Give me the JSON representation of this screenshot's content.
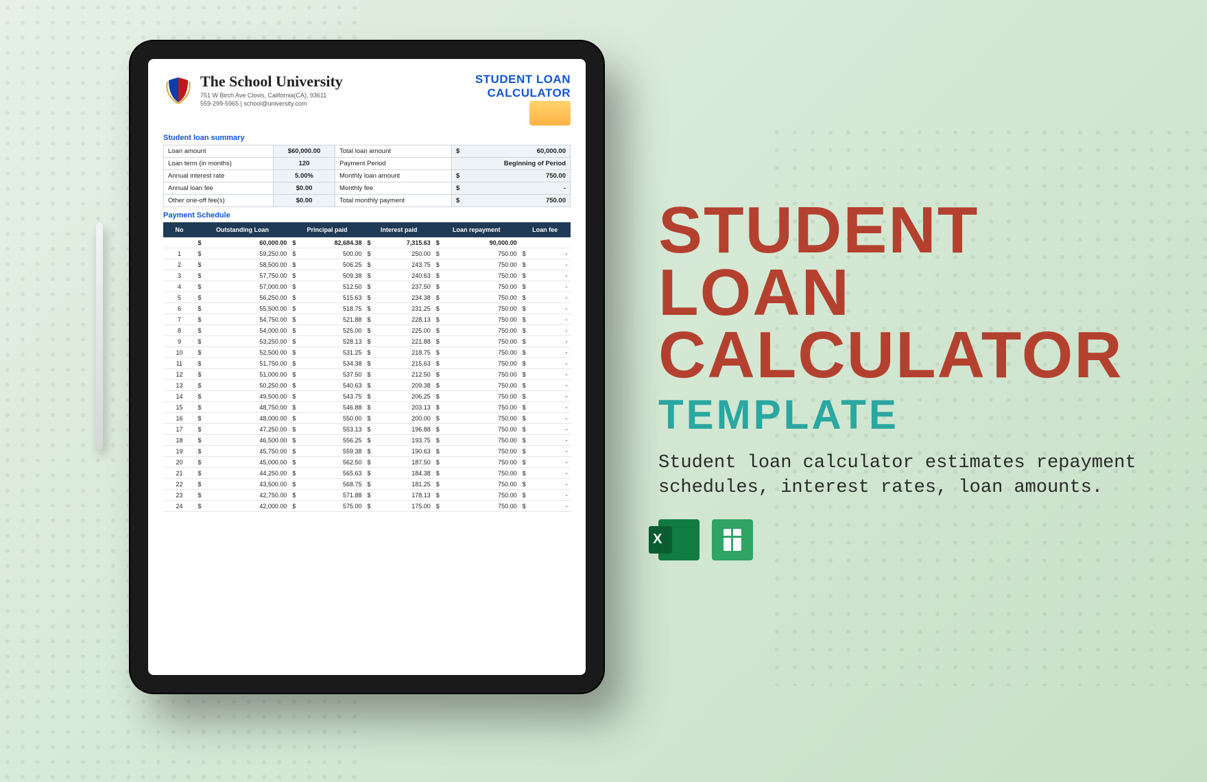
{
  "background": {
    "gradient_from": "#e6f0e6",
    "gradient_to": "#c8e0c8",
    "dot_color_left": "rgba(0,0,0,0.06)",
    "dot_color_right": "rgba(80,100,80,0.10)"
  },
  "marketing": {
    "title_line1": "STUDENT LOAN",
    "title_line2": "CALCULATOR",
    "title_color": "#b4412f",
    "subtitle": "TEMPLATE",
    "subtitle_color": "#2aa7a1",
    "description": "Student loan calculator estimates repayment schedules, interest rates, loan amounts.",
    "formats": [
      "Excel",
      "Google Sheets"
    ]
  },
  "document": {
    "school_name": "The School University",
    "address_line": "751 W Birch Ave Clovis, California(CA), 93611",
    "contact_line": "559-299-5965 | school@university.com",
    "header_title_line1": "STUDENT LOAN",
    "header_title_line2": "CALCULATOR",
    "header_title_color": "#1155d4",
    "crest_colors": {
      "shield_left": "#0b3ea8",
      "shield_right": "#c01919",
      "laurel": "#d4a93a"
    },
    "summary_label": "Student loan summary",
    "summary": {
      "left": [
        {
          "label": "Loan amount",
          "value": "$60,000.00"
        },
        {
          "label": "Loan term (in months)",
          "value": "120"
        },
        {
          "label": "Annual interest rate",
          "value": "5.00%"
        },
        {
          "label": "Annual loan fee",
          "value": "$0.00"
        },
        {
          "label": "Other one-off fee(s)",
          "value": "$0.00"
        }
      ],
      "right": [
        {
          "label": "Total loan amount",
          "currency": "$",
          "value": "60,000.00"
        },
        {
          "label": "Payment Period",
          "currency": "",
          "value": "Beginning of Period"
        },
        {
          "label": "Monthly loan amount",
          "currency": "$",
          "value": "750.00"
        },
        {
          "label": "Monthly fee",
          "currency": "$",
          "value": "-"
        },
        {
          "label": "Total monthly payment",
          "currency": "$",
          "value": "750.00"
        }
      ]
    },
    "schedule_label": "Payment Schedule",
    "schedule": {
      "columns": [
        "No",
        "Outstanding Loan",
        "Principal paid",
        "Interest paid",
        "Loan repayment",
        "Loan fee"
      ],
      "header_bg": "#1f3a56",
      "header_fg": "#ffffff",
      "currency": "$",
      "totals": {
        "outstanding": "60,000.00",
        "principal": "82,684.38",
        "interest": "7,315.63",
        "repayment": "90,000.00",
        "fee": ""
      },
      "rows": [
        {
          "no": 1,
          "outstanding": "59,250.00",
          "principal": "500.00",
          "interest": "250.00",
          "repayment": "750.00",
          "fee": "-"
        },
        {
          "no": 2,
          "outstanding": "58,500.00",
          "principal": "506.25",
          "interest": "243.75",
          "repayment": "750.00",
          "fee": "-"
        },
        {
          "no": 3,
          "outstanding": "57,750.00",
          "principal": "509.38",
          "interest": "240.63",
          "repayment": "750.00",
          "fee": "-"
        },
        {
          "no": 4,
          "outstanding": "57,000.00",
          "principal": "512.50",
          "interest": "237.50",
          "repayment": "750.00",
          "fee": "-"
        },
        {
          "no": 5,
          "outstanding": "56,250.00",
          "principal": "515.63",
          "interest": "234.38",
          "repayment": "750.00",
          "fee": "-"
        },
        {
          "no": 6,
          "outstanding": "55,500.00",
          "principal": "518.75",
          "interest": "231.25",
          "repayment": "750.00",
          "fee": "-"
        },
        {
          "no": 7,
          "outstanding": "54,750.00",
          "principal": "521.88",
          "interest": "228.13",
          "repayment": "750.00",
          "fee": "-"
        },
        {
          "no": 8,
          "outstanding": "54,000.00",
          "principal": "525.00",
          "interest": "225.00",
          "repayment": "750.00",
          "fee": "-"
        },
        {
          "no": 9,
          "outstanding": "53,250.00",
          "principal": "528.13",
          "interest": "221.88",
          "repayment": "750.00",
          "fee": "-"
        },
        {
          "no": 10,
          "outstanding": "52,500.00",
          "principal": "531.25",
          "interest": "218.75",
          "repayment": "750.00",
          "fee": "-"
        },
        {
          "no": 11,
          "outstanding": "51,750.00",
          "principal": "534.38",
          "interest": "215.63",
          "repayment": "750.00",
          "fee": "-"
        },
        {
          "no": 12,
          "outstanding": "51,000.00",
          "principal": "537.50",
          "interest": "212.50",
          "repayment": "750.00",
          "fee": "-"
        },
        {
          "no": 13,
          "outstanding": "50,250.00",
          "principal": "540.63",
          "interest": "209.38",
          "repayment": "750.00",
          "fee": "-"
        },
        {
          "no": 14,
          "outstanding": "49,500.00",
          "principal": "543.75",
          "interest": "206.25",
          "repayment": "750.00",
          "fee": "-"
        },
        {
          "no": 15,
          "outstanding": "48,750.00",
          "principal": "546.88",
          "interest": "203.13",
          "repayment": "750.00",
          "fee": "-"
        },
        {
          "no": 16,
          "outstanding": "48,000.00",
          "principal": "550.00",
          "interest": "200.00",
          "repayment": "750.00",
          "fee": "-"
        },
        {
          "no": 17,
          "outstanding": "47,250.00",
          "principal": "553.13",
          "interest": "196.88",
          "repayment": "750.00",
          "fee": "-"
        },
        {
          "no": 18,
          "outstanding": "46,500.00",
          "principal": "556.25",
          "interest": "193.75",
          "repayment": "750.00",
          "fee": "-"
        },
        {
          "no": 19,
          "outstanding": "45,750.00",
          "principal": "559.38",
          "interest": "190.63",
          "repayment": "750.00",
          "fee": "-"
        },
        {
          "no": 20,
          "outstanding": "45,000.00",
          "principal": "562.50",
          "interest": "187.50",
          "repayment": "750.00",
          "fee": "-"
        },
        {
          "no": 21,
          "outstanding": "44,250.00",
          "principal": "565.63",
          "interest": "184.38",
          "repayment": "750.00",
          "fee": "-"
        },
        {
          "no": 22,
          "outstanding": "43,500.00",
          "principal": "568.75",
          "interest": "181.25",
          "repayment": "750.00",
          "fee": "-"
        },
        {
          "no": 23,
          "outstanding": "42,750.00",
          "principal": "571.88",
          "interest": "178.13",
          "repayment": "750.00",
          "fee": "-"
        },
        {
          "no": 24,
          "outstanding": "42,000.00",
          "principal": "575.00",
          "interest": "175.00",
          "repayment": "750.00",
          "fee": "-"
        }
      ]
    }
  }
}
